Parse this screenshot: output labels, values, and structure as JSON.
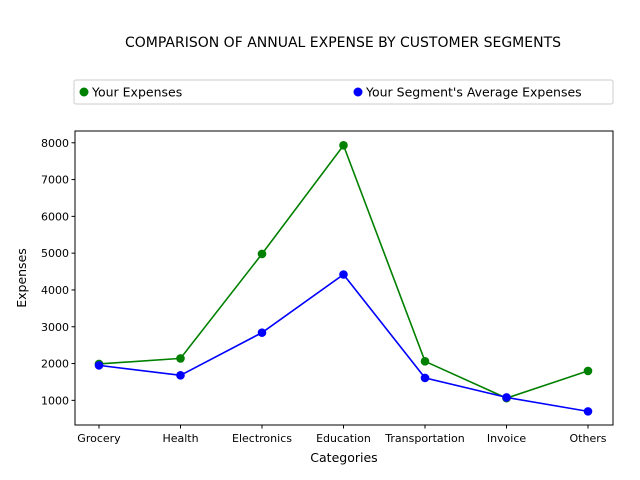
{
  "chart_data": {
    "type": "line",
    "title": "COMPARISON OF ANNUAL EXPENSE BY CUSTOMER SEGMENTS",
    "xlabel": "Categories",
    "ylabel": "Expenses",
    "categories": [
      "Grocery",
      "Health",
      "Electronics",
      "Education",
      "Transportation",
      "Invoice",
      "Others"
    ],
    "ylim": [
      330,
      8320
    ],
    "yticks": [
      1000,
      2000,
      3000,
      4000,
      5000,
      6000,
      7000,
      8000
    ],
    "ytick_labels": [
      "1000",
      "2000",
      "3000",
      "4000",
      "5000",
      "6000",
      "7000",
      "8000"
    ],
    "grid": false,
    "legend_position": "top",
    "series": [
      {
        "name": "Your Expenses",
        "color": "#008000",
        "values": [
          1990,
          2140,
          4980,
          7930,
          2060,
          1060,
          1800
        ]
      },
      {
        "name": "Your Segment's Average Expenses",
        "color": "#0000ff",
        "values": [
          1950,
          1680,
          2840,
          4420,
          1610,
          1080,
          700
        ]
      }
    ]
  }
}
